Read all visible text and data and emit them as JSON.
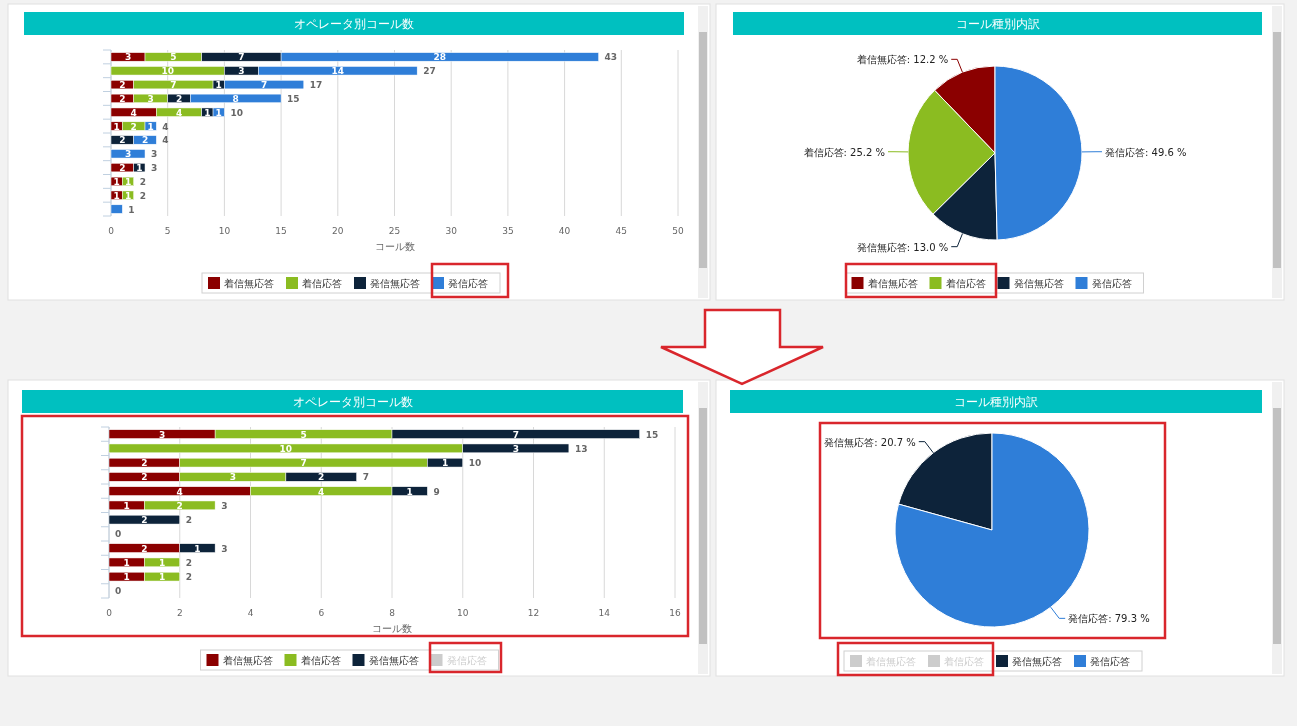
{
  "chart_data": [
    {
      "type": "bar",
      "orientation": "horizontal",
      "stacked": true,
      "title": "オペレータ別コール数",
      "xlabel": "コール数",
      "categories": [
        null,
        null,
        null,
        null,
        null,
        null,
        null,
        null,
        null,
        null,
        null,
        null
      ],
      "xlim": [
        0,
        50
      ],
      "xticks": [
        0,
        5,
        10,
        15,
        20,
        25,
        30,
        35,
        40,
        45,
        50
      ],
      "grid": "x",
      "legend": "bottom",
      "series": [
        {
          "name": "着信無応答",
          "color": "#8b0000",
          "values": [
            3,
            0,
            2,
            2,
            4,
            1,
            0,
            0,
            2,
            1,
            1,
            0
          ],
          "value_labels": [
            "3",
            null,
            "2",
            "2",
            "4",
            "1",
            null,
            null,
            "2",
            "1",
            "1",
            null
          ]
        },
        {
          "name": "着信応答",
          "color": "#8bbc21",
          "values": [
            5,
            10,
            7,
            3,
            4,
            2,
            0,
            0,
            0,
            1,
            1,
            0
          ],
          "value_labels": [
            "5",
            "10",
            "7",
            "3",
            "4",
            "2",
            null,
            null,
            null,
            "1",
            "1",
            null
          ]
        },
        {
          "name": "発信無応答",
          "color": "#0d233a",
          "values": [
            7,
            3,
            1,
            2,
            1,
            0,
            2,
            0,
            1,
            0,
            0,
            0
          ],
          "value_labels": [
            "7",
            "3",
            "1",
            "2",
            "1",
            null,
            "2",
            null,
            "1",
            null,
            null,
            null
          ]
        },
        {
          "name": "発信応答",
          "color": "#2f7ed8",
          "values": [
            28,
            14,
            7,
            8,
            1,
            1,
            2,
            3,
            0,
            0,
            0,
            1
          ],
          "value_labels": [
            "28",
            "14",
            "7",
            "8",
            "1",
            "1",
            "2",
            "3",
            null,
            null,
            null,
            null
          ]
        }
      ],
      "totals": [
        "43",
        "27",
        "17",
        "15",
        "10",
        "4",
        "4",
        "3",
        "3",
        "2",
        "2",
        "1"
      ]
    },
    {
      "type": "pie",
      "title": "コール種別内訳",
      "legend": "bottom",
      "categories": [
        "着信無応答",
        "着信応答",
        "発信無応答",
        "発信応答"
      ],
      "values": [
        12.2,
        25.2,
        13.0,
        49.6
      ],
      "colors": [
        "#8b0000",
        "#8bbc21",
        "#0d233a",
        "#2f7ed8"
      ],
      "value_labels": [
        "着信無応答: 12.2 %",
        "着信応答: 25.2 %",
        "発信無応答: 13.0 %",
        "発信応答: 49.6 %"
      ]
    },
    {
      "type": "bar",
      "orientation": "horizontal",
      "stacked": true,
      "title": "オペレータ別コール数",
      "xlabel": "コール数",
      "categories": [
        null,
        null,
        null,
        null,
        null,
        null,
        null,
        null,
        null,
        null,
        null,
        null
      ],
      "xlim": [
        0,
        16
      ],
      "xticks": [
        0,
        2,
        4,
        6,
        8,
        10,
        12,
        14,
        16
      ],
      "grid": "x",
      "legend": "bottom",
      "series": [
        {
          "name": "着信無応答",
          "color": "#8b0000",
          "values": [
            3,
            0,
            2,
            2,
            4,
            1,
            0,
            0,
            2,
            1,
            1,
            0
          ],
          "value_labels": [
            "3",
            null,
            "2",
            "2",
            "4",
            "1",
            null,
            null,
            "2",
            "1",
            "1",
            null
          ]
        },
        {
          "name": "着信応答",
          "color": "#8bbc21",
          "values": [
            5,
            10,
            7,
            3,
            4,
            2,
            0,
            0,
            0,
            1,
            1,
            0
          ],
          "value_labels": [
            "5",
            "10",
            "7",
            "3",
            "4",
            "2",
            null,
            null,
            null,
            "1",
            "1",
            null
          ]
        },
        {
          "name": "発信無応答",
          "color": "#0d233a",
          "values": [
            7,
            3,
            1,
            2,
            1,
            0,
            2,
            0,
            1,
            0,
            0,
            0
          ],
          "value_labels": [
            "7",
            "3",
            "1",
            "2",
            "1",
            null,
            "2",
            null,
            "1",
            null,
            null,
            null
          ]
        },
        {
          "name": "発信応答",
          "color": "#cccccc",
          "values": [
            null,
            null,
            null,
            null,
            null,
            null,
            null,
            null,
            null,
            null,
            null,
            null
          ]
        }
      ],
      "totals": [
        "15",
        "13",
        "10",
        "7",
        "9",
        "3",
        "2",
        "0",
        "3",
        "2",
        "2",
        "0"
      ]
    },
    {
      "type": "pie",
      "title": "コール種別内訳",
      "legend": "bottom",
      "categories": [
        "着信無応答",
        "着信応答",
        "発信無応答",
        "発信応答"
      ],
      "values": [
        null,
        null,
        20.7,
        79.3
      ],
      "colors": [
        "#cccccc",
        "#cccccc",
        "#0d233a",
        "#2f7ed8"
      ],
      "value_labels": [
        null,
        null,
        "発信無応答: 20.7 %",
        "発信応答: 79.3 %"
      ]
    }
  ]
}
